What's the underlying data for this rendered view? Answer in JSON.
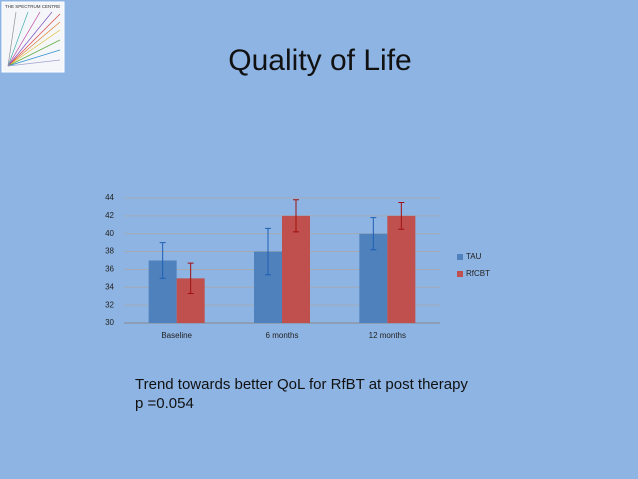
{
  "logo": {
    "text": "THE SPECTRUM CENTRE"
  },
  "chart_data": {
    "type": "bar",
    "title": "Quality of Life",
    "categories": [
      "Baseline",
      "6 months",
      "12  months"
    ],
    "series": [
      {
        "name": "TAU",
        "color": "#4f81bd",
        "error_color": "#1f5fb4",
        "values": [
          37,
          38,
          40
        ],
        "errors": [
          2,
          2.6,
          1.8
        ]
      },
      {
        "name": "RfCBT",
        "color": "#c0504d",
        "error_color": "#a01010",
        "values": [
          35,
          42,
          42
        ],
        "errors": [
          1.7,
          1.8,
          1.5
        ]
      }
    ],
    "ylim": [
      30,
      44
    ],
    "yticks": [
      30,
      32,
      34,
      36,
      38,
      40,
      42,
      44
    ],
    "grid": true,
    "legend": "right",
    "annotations": [
      "Trend towards better QoL for RfBT at post therapy",
      "p =0.054"
    ]
  }
}
